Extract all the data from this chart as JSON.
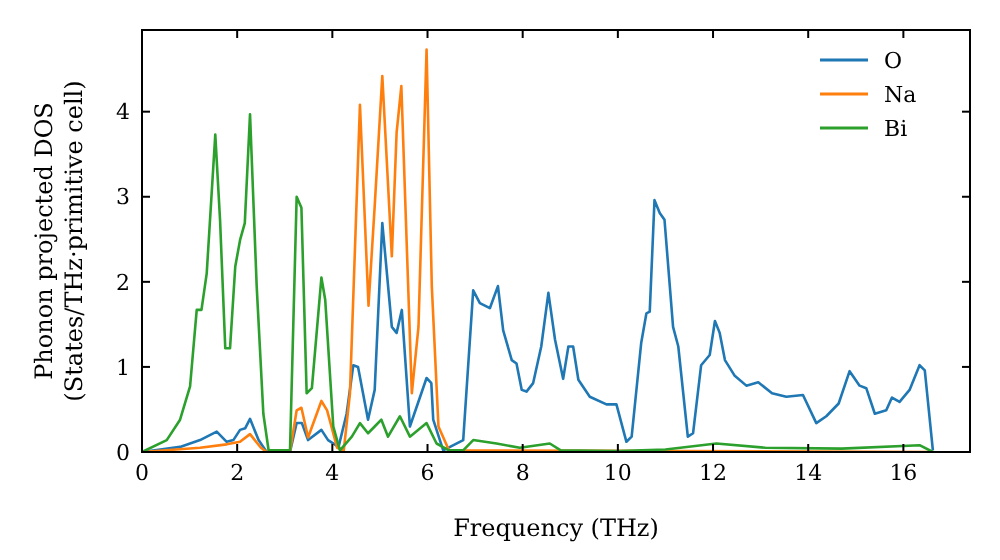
{
  "chart_data": {
    "type": "line",
    "xlabel": "Frequency (THz)",
    "ylabel": "Phonon projected DOS\n(States/THz·primitive cell)",
    "xlim": [
      0,
      17.4
    ],
    "ylim": [
      0,
      4.96
    ],
    "xticks": [
      0,
      2,
      4,
      6,
      8,
      10,
      12,
      14,
      16
    ],
    "yticks": [
      0,
      1,
      2,
      3,
      4
    ],
    "grid": false,
    "legend": "top right",
    "marker": "none",
    "line_style": "solid",
    "series": [
      {
        "name": "O",
        "color": "#1f77b4",
        "x": [
          0,
          0.8,
          1.22,
          1.57,
          1.78,
          1.92,
          2.06,
          2.17,
          2.27,
          2.45,
          2.62,
          3.11,
          3.25,
          3.36,
          3.49,
          3.77,
          3.91,
          4.13,
          4.3,
          4.44,
          4.54,
          4.75,
          4.89,
          5.05,
          5.25,
          5.35,
          5.46,
          5.63,
          5.98,
          6.08,
          6.12,
          6.33,
          6.75,
          6.96,
          7.1,
          7.31,
          7.48,
          7.59,
          7.77,
          7.87,
          7.98,
          8.08,
          8.22,
          8.39,
          8.54,
          8.68,
          8.85,
          8.96,
          9.06,
          9.17,
          9.41,
          9.76,
          9.97,
          10.18,
          10.29,
          10.49,
          10.6,
          10.67,
          10.77,
          10.88,
          10.98,
          11.16,
          11.27,
          11.47,
          11.58,
          11.75,
          11.93,
          12.04,
          12.14,
          12.25,
          12.45,
          12.7,
          12.95,
          13.24,
          13.54,
          13.89,
          14.17,
          14.38,
          14.64,
          14.87,
          15.08,
          15.22,
          15.4,
          15.64,
          15.76,
          15.92,
          16.13,
          16.34,
          16.45,
          16.62
        ],
        "values": [
          0,
          0.06,
          0.14,
          0.24,
          0.12,
          0.14,
          0.26,
          0.28,
          0.39,
          0.14,
          0,
          0,
          0.34,
          0.34,
          0.14,
          0.26,
          0.14,
          0.06,
          0.45,
          1.02,
          1,
          0.38,
          0.73,
          2.69,
          1.47,
          1.4,
          1.67,
          0.3,
          0.87,
          0.81,
          0.38,
          0.02,
          0.14,
          1.9,
          1.75,
          1.69,
          1.95,
          1.43,
          1.08,
          1.04,
          0.73,
          0.71,
          0.81,
          1.24,
          1.87,
          1.32,
          0.86,
          1.24,
          1.24,
          0.85,
          0.65,
          0.56,
          0.56,
          0.12,
          0.18,
          1.28,
          1.63,
          1.65,
          2.96,
          2.81,
          2.73,
          1.47,
          1.24,
          0.18,
          0.22,
          1.02,
          1.14,
          1.54,
          1.4,
          1.08,
          0.9,
          0.78,
          0.82,
          0.69,
          0.65,
          0.67,
          0.34,
          0.42,
          0.57,
          0.95,
          0.78,
          0.75,
          0.45,
          0.49,
          0.64,
          0.59,
          0.73,
          1.02,
          0.96,
          0.02
        ]
      },
      {
        "name": "Na",
        "color": "#ff7f0e",
        "x": [
          0,
          1.22,
          1.78,
          2.06,
          2.27,
          2.5,
          2.62,
          3.11,
          3.25,
          3.35,
          3.49,
          3.77,
          3.89,
          4.1,
          4.24,
          4.37,
          4.58,
          4.76,
          4.89,
          5.05,
          5.25,
          5.35,
          5.45,
          5.67,
          5.81,
          5.98,
          6.09,
          6.23,
          6.45,
          16.62
        ],
        "values": [
          0,
          0.05,
          0.09,
          0.12,
          0.21,
          0.05,
          0,
          0,
          0.49,
          0.52,
          0.17,
          0.6,
          0.49,
          0.05,
          0.02,
          0.69,
          4.08,
          1.72,
          2.89,
          4.42,
          2.3,
          3.75,
          4.3,
          0.69,
          1.47,
          4.73,
          1.95,
          0.3,
          0.02,
          0
        ]
      },
      {
        "name": "Bi",
        "color": "#2ca02c",
        "x": [
          0,
          0.52,
          0.8,
          1.01,
          1.15,
          1.25,
          1.36,
          1.54,
          1.64,
          1.75,
          1.85,
          1.96,
          2.06,
          2.16,
          2.27,
          2.41,
          2.55,
          2.66,
          3.11,
          3.25,
          3.35,
          3.46,
          3.57,
          3.77,
          3.85,
          4.02,
          4.16,
          4.41,
          4.58,
          4.75,
          4.89,
          5.03,
          5.17,
          5.42,
          5.63,
          5.98,
          6.19,
          6.45,
          6.75,
          6.96,
          7.45,
          7.94,
          8.57,
          8.8,
          10,
          11,
          12.07,
          13.1,
          14.7,
          16.34,
          16.62
        ],
        "values": [
          0,
          0.14,
          0.38,
          0.77,
          1.67,
          1.67,
          2.1,
          3.73,
          2.73,
          1.22,
          1.22,
          2.18,
          2.49,
          2.69,
          3.97,
          1.95,
          0.45,
          0.02,
          0.02,
          3,
          2.87,
          0.69,
          0.75,
          2.05,
          1.79,
          0.3,
          0.02,
          0.18,
          0.34,
          0.22,
          0.3,
          0.38,
          0.18,
          0.42,
          0.18,
          0.34,
          0.1,
          0.02,
          0.02,
          0.14,
          0.1,
          0.05,
          0.1,
          0.02,
          0.01,
          0.03,
          0.1,
          0.05,
          0.04,
          0.08,
          0
        ]
      }
    ]
  }
}
